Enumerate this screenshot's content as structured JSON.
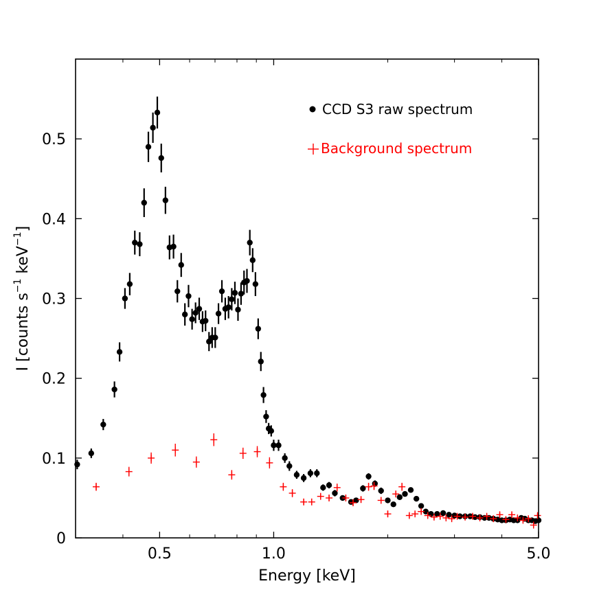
{
  "chart_data": {
    "type": "scatter",
    "xscale": "log",
    "xlim": [
      0.3,
      5.0
    ],
    "ylim": [
      0,
      0.6
    ],
    "xlabel": "Energy [keV]",
    "ylabel": {
      "text": "I [counts s",
      "sup1": "−1",
      "mid": " keV",
      "sup2": "−1",
      "end": "]"
    },
    "xticks": [
      {
        "value": 0.5,
        "label": "0.5"
      },
      {
        "value": 1.0,
        "label": "1.0"
      },
      {
        "value": 5.0,
        "label": "5.0"
      }
    ],
    "xminor": [
      0.4,
      0.6,
      0.7,
      0.8,
      0.9,
      2,
      3,
      4
    ],
    "yticks": [
      {
        "value": 0,
        "label": "0"
      },
      {
        "value": 0.1,
        "label": "0.1"
      },
      {
        "value": 0.2,
        "label": "0.2"
      },
      {
        "value": 0.3,
        "label": "0.3"
      },
      {
        "value": 0.4,
        "label": "0.4"
      },
      {
        "value": 0.5,
        "label": "0.5"
      }
    ],
    "legend": {
      "position": "top-right",
      "entries": [
        {
          "label": "CCD S3 raw spectrum",
          "marker": "dot",
          "color": "#000000"
        },
        {
          "label": "Background spectrum",
          "marker": "plus",
          "color": "#ff0000"
        }
      ]
    },
    "series": [
      {
        "name": "CCD S3 raw spectrum",
        "color": "#000000",
        "marker": "dot",
        "x": [
          0.303,
          0.33,
          0.355,
          0.38,
          0.392,
          0.405,
          0.417,
          0.43,
          0.443,
          0.455,
          0.467,
          0.48,
          0.493,
          0.505,
          0.518,
          0.531,
          0.544,
          0.557,
          0.57,
          0.583,
          0.596,
          0.609,
          0.622,
          0.636,
          0.649,
          0.661,
          0.675,
          0.688,
          0.701,
          0.715,
          0.73,
          0.745,
          0.76,
          0.775,
          0.79,
          0.805,
          0.82,
          0.835,
          0.85,
          0.865,
          0.88,
          0.895,
          0.91,
          0.925,
          0.94,
          0.955,
          0.97,
          0.985,
          1.0,
          1.03,
          1.07,
          1.1,
          1.15,
          1.2,
          1.25,
          1.3,
          1.35,
          1.4,
          1.45,
          1.52,
          1.6,
          1.65,
          1.72,
          1.78,
          1.85,
          1.92,
          2.0,
          2.07,
          2.15,
          2.22,
          2.3,
          2.38,
          2.45,
          2.52,
          2.6,
          2.7,
          2.8,
          2.9,
          3.0,
          3.1,
          3.2,
          3.3,
          3.4,
          3.5,
          3.6,
          3.7,
          3.8,
          3.9,
          4.0,
          4.1,
          4.2,
          4.3,
          4.4,
          4.5,
          4.6,
          4.7,
          4.8,
          4.9,
          5.0
        ],
        "y": [
          0.092,
          0.106,
          0.142,
          0.186,
          0.233,
          0.3,
          0.318,
          0.37,
          0.368,
          0.42,
          0.49,
          0.514,
          0.533,
          0.476,
          0.423,
          0.364,
          0.365,
          0.309,
          0.342,
          0.28,
          0.303,
          0.274,
          0.282,
          0.287,
          0.271,
          0.272,
          0.246,
          0.251,
          0.251,
          0.281,
          0.309,
          0.287,
          0.289,
          0.299,
          0.307,
          0.286,
          0.306,
          0.32,
          0.322,
          0.37,
          0.348,
          0.318,
          0.262,
          0.221,
          0.179,
          0.152,
          0.137,
          0.134,
          0.116,
          0.116,
          0.1,
          0.09,
          0.079,
          0.075,
          0.081,
          0.081,
          0.063,
          0.066,
          0.056,
          0.05,
          0.045,
          0.047,
          0.062,
          0.077,
          0.068,
          0.059,
          0.047,
          0.042,
          0.051,
          0.055,
          0.06,
          0.049,
          0.04,
          0.033,
          0.03,
          0.03,
          0.031,
          0.029,
          0.028,
          0.027,
          0.027,
          0.027,
          0.026,
          0.026,
          0.025,
          0.025,
          0.024,
          0.023,
          0.022,
          0.022,
          0.023,
          0.022,
          0.022,
          0.025,
          0.024,
          0.022,
          0.022,
          0.021,
          0.022
        ],
        "yerr": [
          0.006,
          0.006,
          0.007,
          0.01,
          0.012,
          0.013,
          0.014,
          0.015,
          0.015,
          0.018,
          0.019,
          0.019,
          0.02,
          0.018,
          0.017,
          0.015,
          0.015,
          0.014,
          0.015,
          0.014,
          0.014,
          0.013,
          0.013,
          0.014,
          0.013,
          0.013,
          0.012,
          0.013,
          0.013,
          0.013,
          0.014,
          0.014,
          0.014,
          0.014,
          0.014,
          0.014,
          0.014,
          0.015,
          0.015,
          0.016,
          0.015,
          0.015,
          0.013,
          0.012,
          0.01,
          0.008,
          0.007,
          0.007,
          0.007,
          0.007,
          0.006,
          0.006,
          0.005,
          0.005,
          0.005,
          0.005,
          0.004,
          0.004,
          0.004,
          0.003,
          0.003,
          0.003,
          0.004,
          0.004,
          0.004,
          0.004,
          0.003,
          0.003,
          0.003,
          0.003,
          0.003,
          0.003,
          0.003,
          0.002,
          0.002,
          0.002,
          0.002,
          0.002,
          0.002,
          0.002,
          0.002,
          0.002,
          0.002,
          0.002,
          0.002,
          0.002,
          0.002,
          0.002,
          0.002,
          0.002,
          0.002,
          0.002,
          0.002,
          0.002,
          0.002,
          0.002,
          0.002,
          0.002,
          0.002
        ]
      },
      {
        "name": "Background spectrum",
        "color": "#ff0000",
        "marker": "plus",
        "x": [
          0.34,
          0.415,
          0.475,
          0.55,
          0.625,
          0.695,
          0.775,
          0.83,
          0.905,
          0.975,
          1.06,
          1.12,
          1.2,
          1.26,
          1.33,
          1.4,
          1.47,
          1.55,
          1.62,
          1.7,
          1.78,
          1.84,
          1.92,
          2.0,
          2.1,
          2.18,
          2.28,
          2.36,
          2.45,
          2.55,
          2.65,
          2.75,
          2.85,
          2.95,
          3.05,
          3.2,
          3.35,
          3.5,
          3.65,
          3.8,
          3.95,
          4.1,
          4.25,
          4.4,
          4.55,
          4.7,
          4.85,
          4.97
        ],
        "y": [
          0.064,
          0.083,
          0.1,
          0.11,
          0.095,
          0.123,
          0.079,
          0.106,
          0.108,
          0.094,
          0.064,
          0.056,
          0.045,
          0.045,
          0.052,
          0.05,
          0.063,
          0.05,
          0.044,
          0.048,
          0.064,
          0.065,
          0.047,
          0.03,
          0.055,
          0.064,
          0.028,
          0.03,
          0.033,
          0.028,
          0.026,
          0.027,
          0.025,
          0.024,
          0.027,
          0.026,
          0.027,
          0.025,
          0.027,
          0.024,
          0.029,
          0.023,
          0.029,
          0.025,
          0.022,
          0.024,
          0.016,
          0.028
        ],
        "yerr": [
          0.005,
          0.006,
          0.007,
          0.008,
          0.007,
          0.008,
          0.006,
          0.007,
          0.007,
          0.007,
          0.005,
          0.005,
          0.004,
          0.004,
          0.004,
          0.004,
          0.005,
          0.004,
          0.004,
          0.004,
          0.005,
          0.005,
          0.004,
          0.004,
          0.004,
          0.005,
          0.003,
          0.003,
          0.003,
          0.003,
          0.003,
          0.003,
          0.003,
          0.003,
          0.003,
          0.003,
          0.003,
          0.003,
          0.003,
          0.003,
          0.003,
          0.003,
          0.003,
          0.003,
          0.003,
          0.003,
          0.003,
          0.003
        ]
      }
    ]
  }
}
